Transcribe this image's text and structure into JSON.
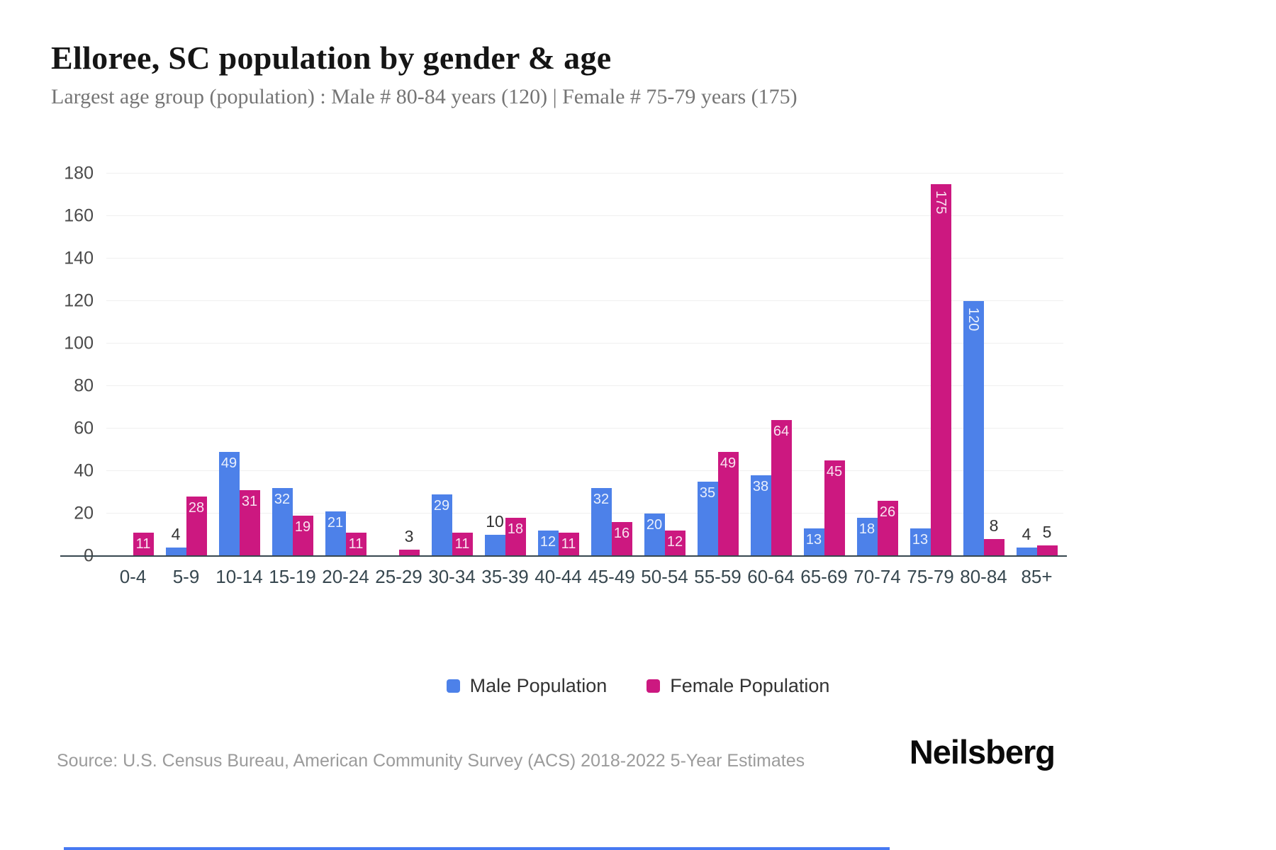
{
  "header": {
    "title": "Elloree, SC population by gender & age",
    "subtitle": "Largest age group (population) : Male # 80-84 years (120) | Female # 75-79 years (175)"
  },
  "chart_data": {
    "type": "bar",
    "title": "Elloree, SC population by gender & age",
    "xlabel": "",
    "ylabel": "",
    "categories": [
      "0-4",
      "5-9",
      "10-14",
      "15-19",
      "20-24",
      "25-29",
      "30-34",
      "35-39",
      "40-44",
      "45-49",
      "50-54",
      "55-59",
      "60-64",
      "65-69",
      "70-74",
      "75-79",
      "80-84",
      "85+"
    ],
    "series": [
      {
        "name": "Male Population",
        "key": "male",
        "color": "#4d81e9",
        "values": [
          0,
          4,
          49,
          32,
          21,
          0,
          29,
          10,
          12,
          32,
          20,
          35,
          38,
          13,
          18,
          13,
          120,
          4
        ]
      },
      {
        "name": "Female Population",
        "key": "female",
        "color": "#cc1880",
        "values": [
          11,
          28,
          31,
          19,
          11,
          3,
          11,
          18,
          11,
          16,
          12,
          49,
          64,
          45,
          26,
          175,
          8,
          5
        ]
      }
    ],
    "ylim": [
      0,
      180
    ],
    "yticks": [
      0,
      20,
      40,
      60,
      80,
      100,
      120,
      140,
      160,
      180
    ],
    "grid": "horizontal",
    "legend_position": "bottom"
  },
  "legend": {
    "items": [
      {
        "label": "Male Population",
        "color": "#4d81e9"
      },
      {
        "label": "Female Population",
        "color": "#cc1880"
      }
    ]
  },
  "footer": {
    "source": "Source: U.S. Census Bureau, American Community Survey (ACS) 2018-2022 5-Year Estimates",
    "brand": "Neilsberg"
  },
  "colors": {
    "male": "#4d81e9",
    "female": "#cc1880",
    "grid": "#efefef",
    "axis": "#37474f",
    "accent_line": "#4679f2"
  }
}
